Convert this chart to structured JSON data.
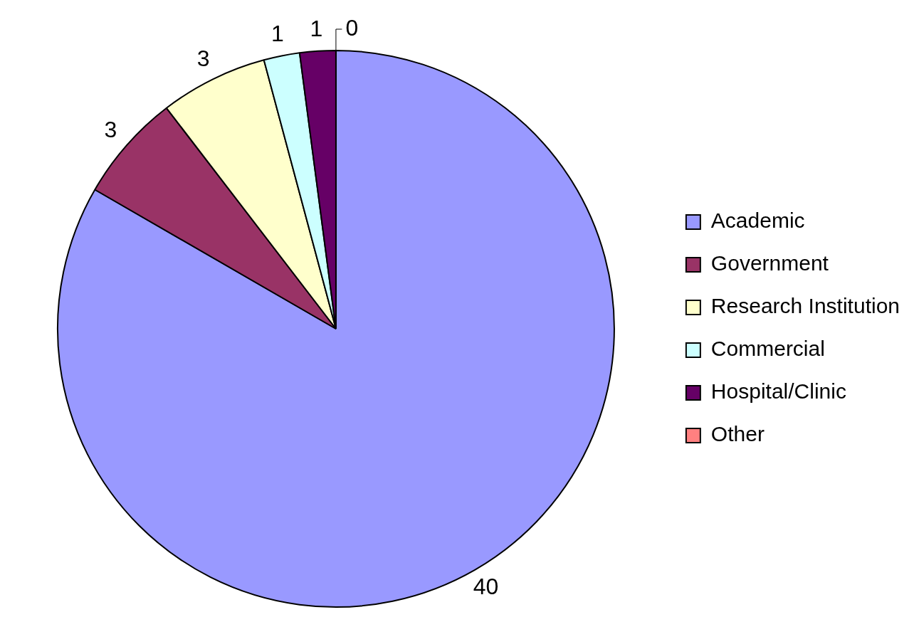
{
  "chart_data": {
    "type": "pie",
    "categories": [
      "Academic",
      "Government",
      "Research Institution",
      "Commercial",
      "Hospital/Clinic",
      "Other"
    ],
    "values": [
      40,
      3,
      3,
      1,
      1,
      0
    ],
    "colors": [
      "#9999ff",
      "#993366",
      "#ffffcc",
      "#ccffff",
      "#660066",
      "#ff8080"
    ],
    "value_labels": [
      "40",
      "3",
      "3",
      "1",
      "1",
      "0"
    ],
    "legend": "right"
  }
}
